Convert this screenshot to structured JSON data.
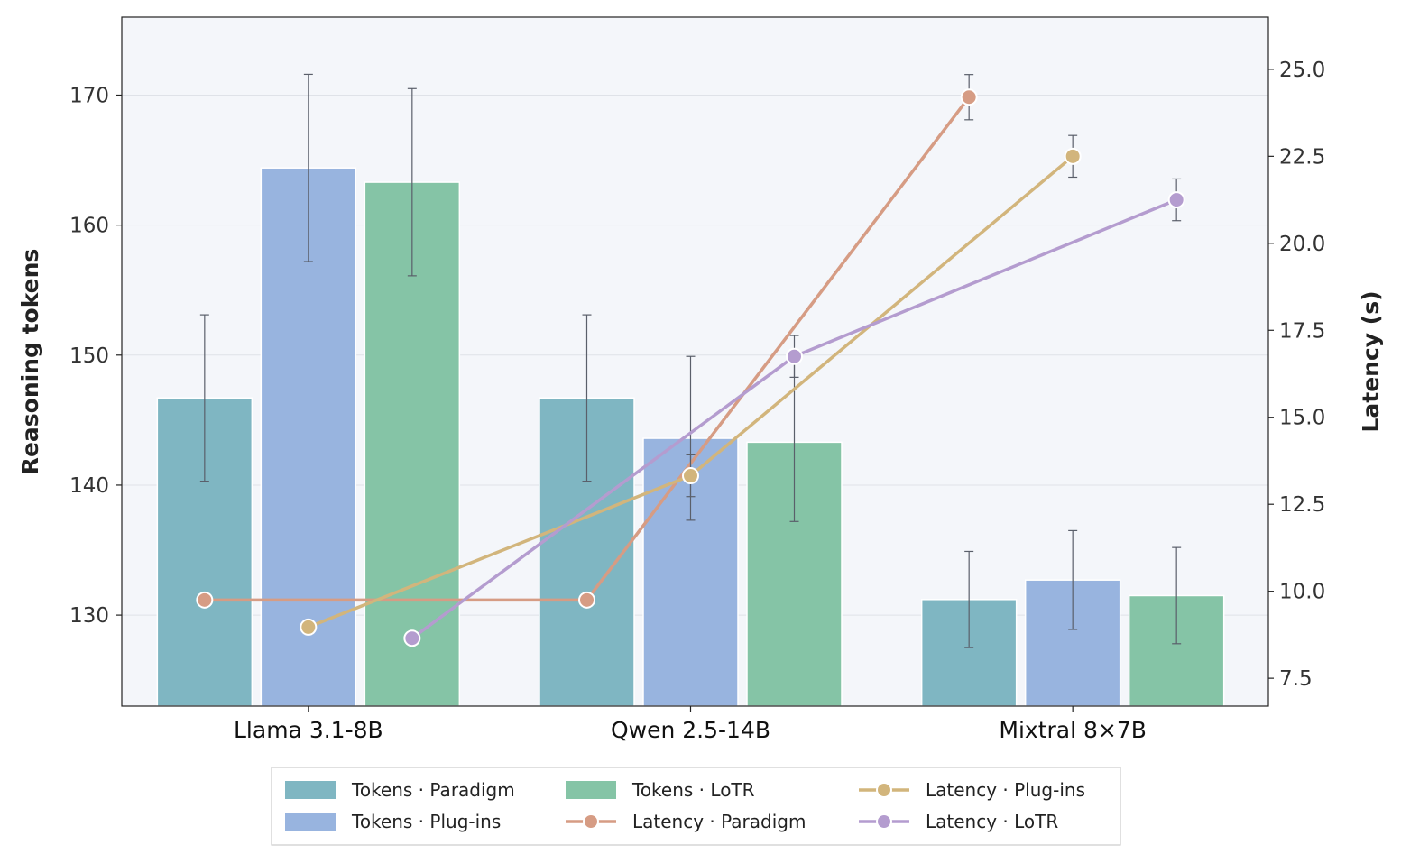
{
  "chart_data": {
    "type": "bar",
    "categories": [
      "Llama 3.1-8B",
      "Qwen 2.5-14B",
      "Mixtral 8×7B"
    ],
    "ylabel": "Reasoning tokens",
    "y2label": "Latency (s)",
    "ylim": [
      123,
      176
    ],
    "y2lim": [
      6.7,
      26.5
    ],
    "yticks": [
      130,
      140,
      150,
      160,
      170
    ],
    "y2ticks": [
      7.5,
      10.0,
      12.5,
      15.0,
      17.5,
      20.0,
      22.5,
      25.0
    ],
    "grid": true,
    "legend_position": "bottom-center",
    "bar_series": [
      {
        "name": "Tokens · Paradigm",
        "color": "#7fb6c2",
        "values": [
          146.7,
          146.7,
          131.2
        ],
        "errors": [
          6.4,
          6.4,
          3.7
        ]
      },
      {
        "name": "Tokens · Plug-ins",
        "color": "#98b4df",
        "values": [
          164.4,
          143.6,
          132.7
        ],
        "errors": [
          7.2,
          6.3,
          3.8
        ]
      },
      {
        "name": "Tokens · LoTR",
        "color": "#85c4a6",
        "values": [
          163.3,
          143.3,
          131.5
        ],
        "errors": [
          7.2,
          6.1,
          3.7
        ]
      }
    ],
    "line_series": [
      {
        "name": "Latency · Paradigm",
        "color": "#d69c84",
        "values": [
          9.75,
          9.75,
          24.2
        ],
        "errors": [
          0.2,
          0.2,
          0.65
        ]
      },
      {
        "name": "Latency · Plug-ins",
        "color": "#d2b57c",
        "values": [
          8.97,
          13.32,
          22.5
        ],
        "errors": [
          0.2,
          0.6,
          0.6
        ]
      },
      {
        "name": "Latency · LoTR",
        "color": "#b49ccf",
        "values": [
          8.65,
          16.75,
          21.25
        ],
        "errors": [
          0.2,
          0.6,
          0.6
        ]
      }
    ],
    "legend": {
      "columns": [
        [
          "Tokens · Paradigm",
          "Tokens · Plug-ins"
        ],
        [
          "Tokens · LoTR",
          "Latency · Paradigm"
        ],
        [
          "Latency · Plug-ins",
          "Latency · LoTR"
        ]
      ]
    }
  }
}
